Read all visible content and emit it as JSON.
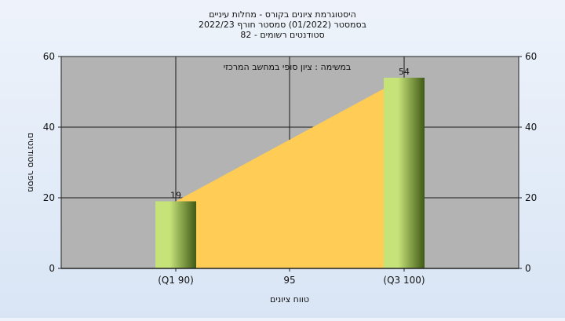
{
  "chart_data": {
    "type": "bar",
    "title_lines": [
      "היסטוגרמת ציונים בקורס - מחלות עיניים",
      "בסמסטר  (01/2022)  סמסטר חורף  2022/23",
      "סטודנטים רשומים - 82"
    ],
    "annotation": "במשימה : ציון סופי במחשב המרכזי",
    "xlabel": "טווח ציונים",
    "ylabel": "מספר סטודנטים",
    "categories": [
      "(Q1 90)",
      "95",
      "(Q3 100)"
    ],
    "series": [
      {
        "values": [
          19,
          null,
          54
        ]
      }
    ],
    "data_labels": [
      "19",
      "54"
    ],
    "area": {
      "from": 19,
      "to": 54
    },
    "ylim": [
      0,
      60
    ],
    "yticks": [
      0,
      20,
      40,
      60
    ],
    "ytick_labels": [
      "0",
      "20",
      "40",
      "60"
    ],
    "grid": true,
    "secondary_y_axis": true
  },
  "colors": {
    "plot_background": "#b3b3b3",
    "area_fill": "#ffcc55",
    "bar_light": "#c6e37a",
    "bar_dark": "#3f5a14",
    "grid": "#1a1a1a"
  }
}
